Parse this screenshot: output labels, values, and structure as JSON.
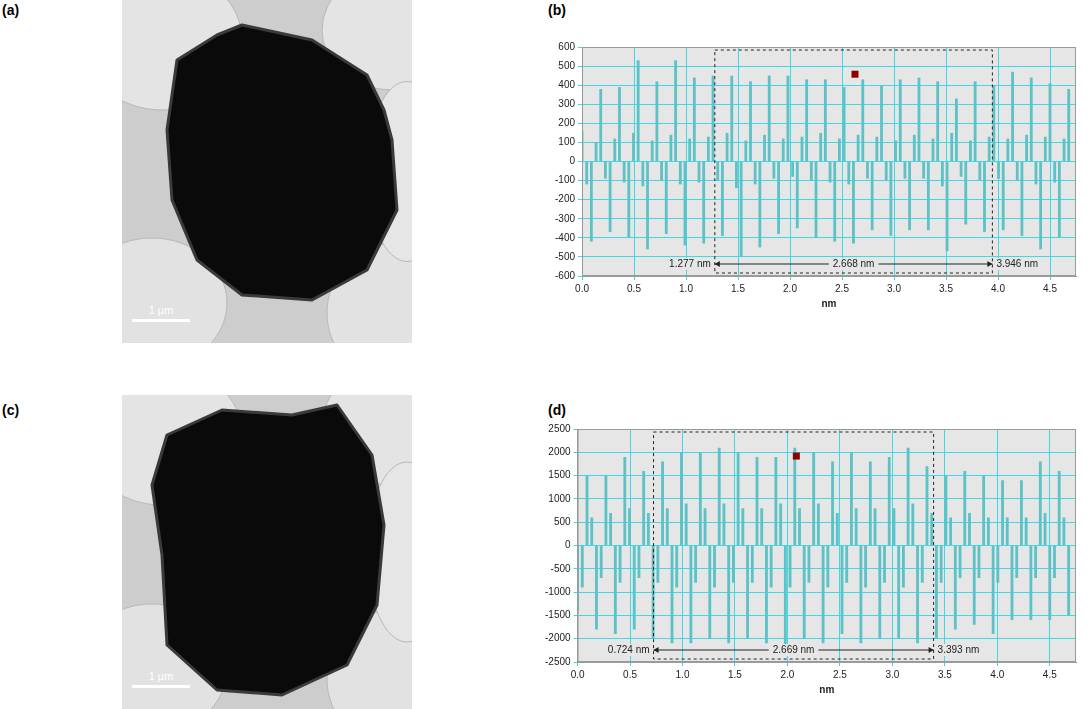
{
  "images": [
    {
      "panel": "(a)",
      "scale_bar": "1 µm"
    },
    {
      "panel": "(c)",
      "scale_bar": "1 µm"
    }
  ],
  "chart_data": [
    {
      "panel": "(b)",
      "type": "bar",
      "xlabel": "nm",
      "color": "#5cc2c6",
      "grid": true,
      "xlim": [
        0,
        4.75
      ],
      "xticks": [
        {
          "value": 0,
          "label": "0.0"
        },
        0.5,
        {
          "value": 1,
          "label": "1.0"
        },
        1.5,
        {
          "value": 2,
          "label": "2.0"
        },
        2.5,
        {
          "value": 3,
          "label": "3.0"
        },
        3.5,
        {
          "value": 4,
          "label": "4.0"
        },
        4.5
      ],
      "ylim": [
        -600,
        600
      ],
      "yticks": [
        -600,
        -500,
        -400,
        -300,
        -200,
        -100,
        0,
        100,
        200,
        300,
        400,
        500,
        600
      ],
      "measurement": {
        "start": {
          "value": 1.277,
          "label": "1.277 nm"
        },
        "length": {
          "value": 2.668,
          "label": "2.668 nm"
        },
        "end": {
          "value": 3.946,
          "label": "3.946 nm"
        }
      },
      "cursor_point": {
        "x": 2.62,
        "y": 460
      },
      "x": [
        0,
        0.045,
        0.09,
        0.135,
        0.18,
        0.225,
        0.27,
        0.315,
        0.36,
        0.405,
        0.45,
        0.495,
        0.54,
        0.585,
        0.63,
        0.675,
        0.72,
        0.765,
        0.81,
        0.855,
        0.9,
        0.945,
        0.99,
        1.035,
        1.08,
        1.125,
        1.17,
        1.215,
        1.26,
        1.305,
        1.35,
        1.395,
        1.44,
        1.485,
        1.53,
        1.575,
        1.62,
        1.665,
        1.71,
        1.755,
        1.8,
        1.845,
        1.89,
        1.935,
        1.98,
        2.025,
        2.07,
        2.115,
        2.16,
        2.205,
        2.25,
        2.295,
        2.34,
        2.385,
        2.43,
        2.475,
        2.52,
        2.565,
        2.61,
        2.655,
        2.7,
        2.745,
        2.79,
        2.835,
        2.88,
        2.925,
        2.97,
        3.015,
        3.06,
        3.105,
        3.15,
        3.195,
        3.24,
        3.285,
        3.33,
        3.375,
        3.42,
        3.465,
        3.51,
        3.555,
        3.6,
        3.645,
        3.69,
        3.735,
        3.78,
        3.825,
        3.87,
        3.915,
        3.96,
        4.005,
        4.05,
        4.095,
        4.14,
        4.185,
        4.23,
        4.275,
        4.32,
        4.365,
        4.41,
        4.455,
        4.5,
        4.545,
        4.59,
        4.635,
        4.68
      ],
      "values": [
        160,
        -120,
        -420,
        100,
        380,
        -90,
        -370,
        120,
        390,
        -110,
        -400,
        150,
        530,
        -130,
        -460,
        110,
        420,
        -100,
        -380,
        140,
        530,
        -120,
        -440,
        120,
        440,
        -110,
        -430,
        130,
        450,
        -100,
        -390,
        150,
        450,
        -140,
        -500,
        110,
        420,
        -120,
        -450,
        140,
        450,
        -90,
        -380,
        120,
        450,
        -80,
        -350,
        130,
        430,
        -100,
        -400,
        150,
        430,
        -110,
        -420,
        120,
        390,
        -120,
        -430,
        140,
        430,
        -90,
        -360,
        130,
        400,
        -100,
        -390,
        110,
        430,
        -90,
        -360,
        140,
        440,
        -90,
        -360,
        120,
        420,
        -130,
        -470,
        150,
        330,
        -80,
        -330,
        110,
        420,
        -100,
        -370,
        130,
        400,
        -90,
        -360,
        120,
        470,
        -100,
        -390,
        140,
        440,
        -120,
        -460,
        130,
        410,
        -110,
        -400,
        120,
        380
      ]
    },
    {
      "panel": "(d)",
      "type": "bar",
      "xlabel": "nm",
      "color": "#5cc2c6",
      "grid": true,
      "xlim": [
        0,
        4.75
      ],
      "xticks": [
        {
          "value": 0,
          "label": "0.0"
        },
        0.5,
        {
          "value": 1,
          "label": "1.0"
        },
        1.5,
        {
          "value": 2,
          "label": "2.0"
        },
        2.5,
        {
          "value": 3,
          "label": "3.0"
        },
        3.5,
        {
          "value": 4,
          "label": "4.0"
        },
        4.5
      ],
      "ylim": [
        -2500,
        2500
      ],
      "yticks": [
        -2500,
        -2000,
        -1500,
        -1000,
        -500,
        0,
        500,
        1000,
        1500,
        2000,
        2500
      ],
      "measurement": {
        "start": {
          "value": 0.724,
          "label": "0.724 nm"
        },
        "length": {
          "value": 2.669,
          "label": "2.669 nm"
        },
        "end": {
          "value": 3.393,
          "label": "3.393 nm"
        }
      },
      "cursor_point": {
        "x": 2.08,
        "y": 1930
      },
      "x": [
        0,
        0.045,
        0.09,
        0.135,
        0.18,
        0.225,
        0.27,
        0.315,
        0.36,
        0.405,
        0.45,
        0.495,
        0.54,
        0.585,
        0.63,
        0.675,
        0.72,
        0.765,
        0.81,
        0.855,
        0.9,
        0.945,
        0.99,
        1.035,
        1.08,
        1.125,
        1.17,
        1.215,
        1.26,
        1.305,
        1.35,
        1.395,
        1.44,
        1.485,
        1.53,
        1.575,
        1.62,
        1.665,
        1.71,
        1.755,
        1.8,
        1.845,
        1.89,
        1.935,
        1.98,
        2.025,
        2.07,
        2.115,
        2.16,
        2.205,
        2.25,
        2.295,
        2.34,
        2.385,
        2.43,
        2.475,
        2.52,
        2.565,
        2.61,
        2.655,
        2.7,
        2.745,
        2.79,
        2.835,
        2.88,
        2.925,
        2.97,
        3.015,
        3.06,
        3.105,
        3.15,
        3.195,
        3.24,
        3.285,
        3.33,
        3.375,
        3.42,
        3.465,
        3.51,
        3.555,
        3.6,
        3.645,
        3.69,
        3.735,
        3.78,
        3.825,
        3.87,
        3.915,
        3.96,
        4.005,
        4.05,
        4.095,
        4.14,
        4.185,
        4.23,
        4.275,
        4.32,
        4.365,
        4.41,
        4.455,
        4.5,
        4.545,
        4.59,
        4.635,
        4.68
      ],
      "values": [
        -1400,
        -900,
        1500,
        600,
        -1800,
        -700,
        1500,
        700,
        -1900,
        -800,
        1900,
        800,
        -1800,
        -700,
        1600,
        700,
        -2000,
        -800,
        1800,
        800,
        -2100,
        -900,
        2000,
        900,
        -2100,
        -800,
        2000,
        800,
        -2000,
        -900,
        2100,
        900,
        -2100,
        -800,
        2000,
        800,
        -2000,
        -800,
        1900,
        800,
        -2100,
        -900,
        1900,
        900,
        -2200,
        -900,
        2100,
        800,
        -2000,
        -800,
        2000,
        900,
        -2100,
        -900,
        1800,
        700,
        -1900,
        -800,
        2000,
        800,
        -2100,
        -900,
        1800,
        800,
        -2000,
        -800,
        1900,
        800,
        -2000,
        -900,
        2100,
        900,
        -2100,
        -800,
        1700,
        700,
        -2000,
        -800,
        1500,
        600,
        -1800,
        -700,
        1600,
        700,
        -1700,
        -700,
        1500,
        600,
        -1900,
        -800,
        1400,
        600,
        -1600,
        -700,
        1400,
        600,
        -1600,
        -700,
        1800,
        700,
        -1600,
        -700,
        1600,
        600,
        -1500
      ]
    }
  ]
}
